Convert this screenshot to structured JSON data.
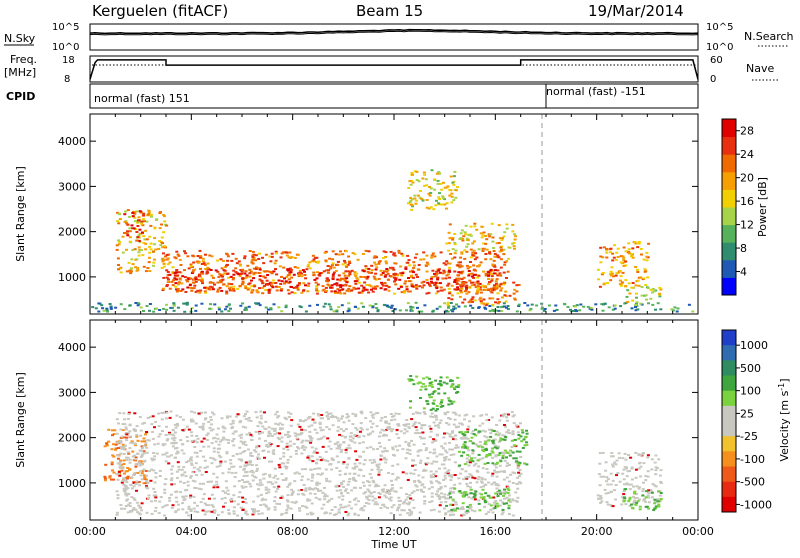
{
  "header": {
    "station": "Kerguelen (fitACF)",
    "beam": "Beam 15",
    "date": "19/Mar/2014"
  },
  "strips": {
    "nsky_label": "N.Sky",
    "nsky_ticks": [
      "10^5",
      "10^0"
    ],
    "nsearch_label": "N.Search",
    "nsearch_ticks": [
      "10^5",
      "10^0"
    ],
    "freq_label": "Freq.",
    "freq_unit": "[MHz]",
    "freq_ticks": [
      "18",
      "8"
    ],
    "nave_label": "Nave",
    "nave_ticks": [
      "60",
      "0"
    ],
    "cpid_label": "CPID",
    "cpid_segments": [
      "normal (fast) 151",
      "normal (fast) -151"
    ],
    "freq_series": {
      "hours": [
        0,
        0.2,
        0.3,
        3.0,
        3.0,
        17.0,
        17.0,
        23.8,
        24
      ],
      "mhz": [
        9,
        15.5,
        16.5,
        16.5,
        14.5,
        14.5,
        16.5,
        16.5,
        9
      ]
    },
    "cpid_switch_hour": 18.0
  },
  "colors": {
    "power_scale": [
      "#0000ff",
      "#1e5ab4",
      "#2f8c6e",
      "#55b25a",
      "#a6d34a",
      "#f2d000",
      "#f5a000",
      "#f06a00",
      "#e83010",
      "#e00000"
    ],
    "velocity_scale": [
      "#1f3fc8",
      "#2f6cb0",
      "#2e8c60",
      "#3fa53e",
      "#7ad23e",
      "#c8c8c0",
      "#c8c8c0",
      "#f2c12e",
      "#f58f1e",
      "#ef5a1a",
      "#e82a12",
      "#e00000"
    ],
    "gray_scatter": "#c8c8c0"
  },
  "chart_data": [
    {
      "type": "heatmap",
      "title": "",
      "ylabel": "Slant Range [km]",
      "xlabel": "",
      "xlim": [
        0,
        24
      ],
      "ylim": [
        180,
        4600
      ],
      "yticks": [
        "1000",
        "2000",
        "3000",
        "4000"
      ],
      "colorbar": {
        "label": "Power [dB]",
        "ticks": [
          "4",
          "8",
          "12",
          "16",
          "20",
          "24",
          "28"
        ],
        "range": [
          0,
          30
        ]
      },
      "regions": [
        {
          "t0": 0.0,
          "t1": 24.0,
          "r0": 250,
          "r1": 450,
          "level": 8
        },
        {
          "t0": 1.0,
          "t1": 3.0,
          "r0": 1100,
          "r1": 2500,
          "level": 18
        },
        {
          "t0": 1.3,
          "t1": 2.1,
          "r0": 1800,
          "r1": 2500,
          "level": 26
        },
        {
          "t0": 2.8,
          "t1": 16.5,
          "r0": 650,
          "r1": 1600,
          "level": 22
        },
        {
          "t0": 3.0,
          "t1": 16.0,
          "r0": 700,
          "r1": 1200,
          "level": 26
        },
        {
          "t0": 12.5,
          "t1": 14.5,
          "r0": 2500,
          "r1": 3400,
          "level": 16
        },
        {
          "t0": 14.0,
          "t1": 16.8,
          "r0": 1600,
          "r1": 2200,
          "level": 18
        },
        {
          "t0": 14.0,
          "t1": 17.0,
          "r0": 400,
          "r1": 900,
          "level": 22
        },
        {
          "t0": 20.0,
          "t1": 22.0,
          "r0": 800,
          "r1": 1800,
          "level": 20
        },
        {
          "t0": 21.0,
          "t1": 22.5,
          "r0": 400,
          "r1": 800,
          "level": 14
        }
      ]
    },
    {
      "type": "heatmap",
      "title": "",
      "ylabel": "Slant Range [km]",
      "xlabel": "Time UT",
      "xlim": [
        0,
        24
      ],
      "ylim": [
        180,
        4600
      ],
      "xticks": [
        "00:00",
        "04:00",
        "08:00",
        "12:00",
        "16:00",
        "20:00",
        "00:00"
      ],
      "yticks": [
        "1000",
        "2000",
        "3000",
        "4000"
      ],
      "colorbar": {
        "label": "Velocity [m s^-1]",
        "ticks": [
          "1000",
          "500",
          "100",
          "25",
          "-25",
          "-100",
          "-500",
          "-1000"
        ]
      },
      "regions": [
        {
          "t0": 0.5,
          "t1": 2.2,
          "r0": 1000,
          "r1": 2200,
          "level": -500
        },
        {
          "t0": 1.0,
          "t1": 17.0,
          "r0": 300,
          "r1": 2600,
          "level": 0
        },
        {
          "t0": 12.5,
          "t1": 14.5,
          "r0": 2600,
          "r1": 3400,
          "level": 150
        },
        {
          "t0": 14.5,
          "t1": 17.2,
          "r0": 1400,
          "r1": 2200,
          "level": 300
        },
        {
          "t0": 14.0,
          "t1": 16.5,
          "r0": 400,
          "r1": 900,
          "level": 120
        },
        {
          "t0": 20.0,
          "t1": 22.5,
          "r0": 500,
          "r1": 1700,
          "level": 0
        },
        {
          "t0": 21.0,
          "t1": 22.5,
          "r0": 400,
          "r1": 900,
          "level": 200
        }
      ]
    }
  ]
}
